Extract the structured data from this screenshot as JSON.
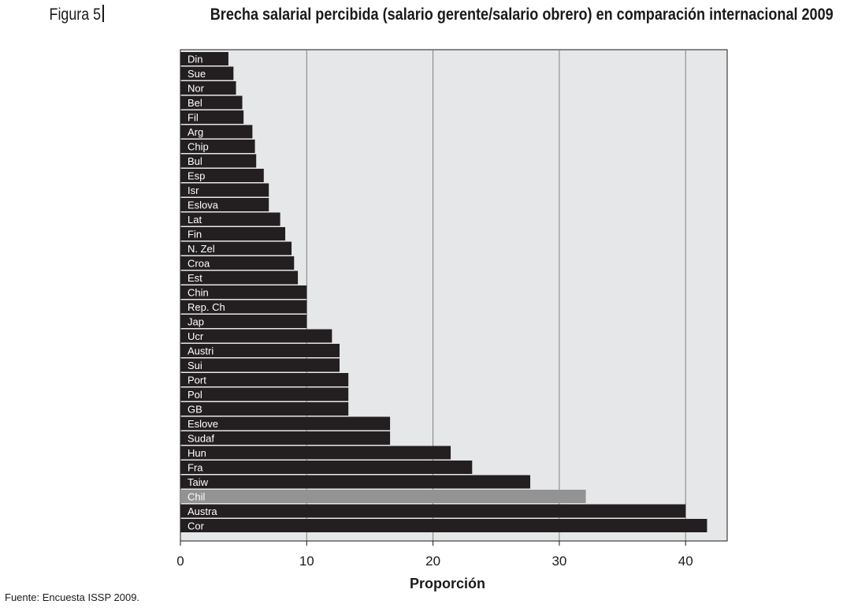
{
  "figure_label": "Figura 5",
  "source_note": "Fuente: Encuesta ISSP 2009.",
  "colors": {
    "bar": "#231f20",
    "highlight": "#939393",
    "plot_bg": "#e6e7e8",
    "grid": "#808080",
    "label": "#ffffff"
  },
  "chart_data": {
    "type": "bar",
    "orientation": "horizontal",
    "title": "Brecha salarial percibida (salario gerente/salario obrero) en comparación internacional 2009",
    "xlabel": "Proporción",
    "ylabel": "",
    "xlim": [
      0,
      43
    ],
    "xticks": [
      0,
      10,
      20,
      30,
      40
    ],
    "grid": "vertical",
    "highlight": "Chil",
    "categories": [
      "Din",
      "Sue",
      "Nor",
      "Bel",
      "Fil",
      "Arg",
      "Chip",
      "Bul",
      "Esp",
      "Isr",
      "Eslova",
      "Lat",
      "Fin",
      "N. Zel",
      "Croa",
      "Est",
      "Chin",
      "Rep. Ch",
      "Jap",
      "Ucr",
      "Austri",
      "Sui",
      "Port",
      "Pol",
      "GB",
      "Eslove",
      "Sudaf",
      "Hun",
      "Fra",
      "Taiw",
      "Chil",
      "Austra",
      "Cor"
    ],
    "values": [
      3.8,
      4.2,
      4.4,
      4.9,
      5.0,
      5.7,
      5.9,
      6.0,
      6.6,
      7.0,
      7.0,
      7.9,
      8.3,
      8.8,
      9.0,
      9.3,
      10.0,
      10.0,
      10.0,
      12.0,
      12.6,
      12.6,
      13.3,
      13.3,
      13.3,
      16.6,
      16.6,
      21.4,
      23.1,
      27.7,
      32.1,
      40.0,
      41.7
    ]
  }
}
